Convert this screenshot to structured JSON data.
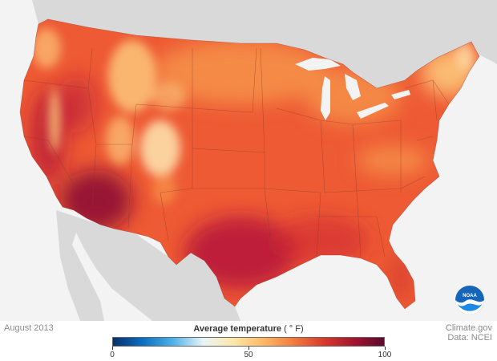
{
  "map": {
    "date_label": "August 2013",
    "credit_line1": "Climate.gov",
    "credit_line2": "Data: NCEI",
    "logo_text": "NOAA"
  },
  "legend": {
    "title": "Average temperature",
    "unit": "( ° F)",
    "min": 0,
    "max": 100,
    "ticks": [
      "0",
      "50",
      "100"
    ],
    "tick_values": [
      0,
      50,
      100
    ],
    "colors": [
      "#08306b",
      "#0a6fc2",
      "#4fb3e8",
      "#eaf4f8",
      "#fde7a8",
      "#fdb863",
      "#f37b3f",
      "#d93a2b",
      "#a3142f",
      "#5b0a2e"
    ]
  },
  "colors": {
    "land_base": "#ee5a34",
    "hot": "#b8163a",
    "very_hot": "#8e0f33",
    "warm": "#f6934a",
    "cool": "#fcc679",
    "coolest": "#fde6b0",
    "neighbor_land": "#d9d9d9",
    "water": "#f3f3f3"
  }
}
